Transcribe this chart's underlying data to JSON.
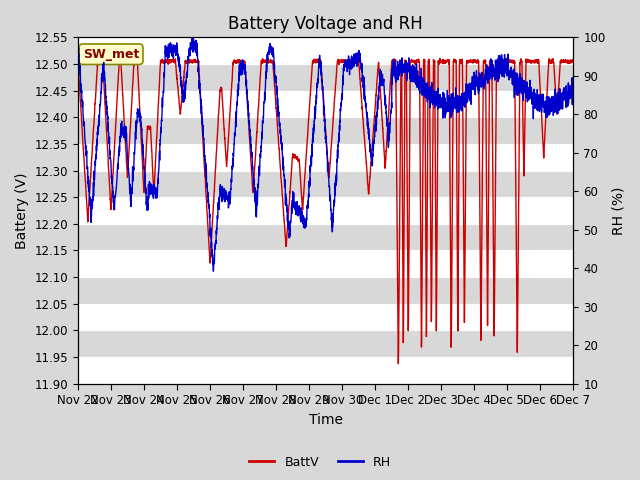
{
  "title": "Battery Voltage and RH",
  "xlabel": "Time",
  "ylabel_left": "Battery (V)",
  "ylabel_right": "RH (%)",
  "ylim_left": [
    11.9,
    12.55
  ],
  "ylim_right": [
    10,
    100
  ],
  "yticks_left": [
    11.9,
    11.95,
    12.0,
    12.05,
    12.1,
    12.15,
    12.2,
    12.25,
    12.3,
    12.35,
    12.4,
    12.45,
    12.5,
    12.55
  ],
  "yticks_right": [
    10,
    20,
    30,
    40,
    50,
    60,
    70,
    80,
    90,
    100
  ],
  "xtick_labels": [
    "Nov 22",
    "Nov 23",
    "Nov 24",
    "Nov 25",
    "Nov 26",
    "Nov 27",
    "Nov 28",
    "Nov 29",
    "Nov 30",
    "Dec 1",
    "Dec 2",
    "Dec 3",
    "Dec 4",
    "Dec 5",
    "Dec 6",
    "Dec 7"
  ],
  "color_batt": "#cc0000",
  "color_rh": "#0000cc",
  "line_width": 1.0,
  "legend_label_batt": "BattV",
  "legend_label_rh": "RH",
  "watermark_text": "SW_met",
  "watermark_bg": "#ffffcc",
  "watermark_border": "#888800",
  "bg_color": "#d8d8d8",
  "plot_bg_light": "#e8e8e8",
  "plot_bg_dark": "#d0d0d0",
  "grid_color": "#ffffff",
  "title_fontsize": 12,
  "axis_label_fontsize": 10,
  "tick_fontsize": 8.5,
  "legend_fontsize": 9,
  "n_days": 15,
  "n_pts": 3000
}
